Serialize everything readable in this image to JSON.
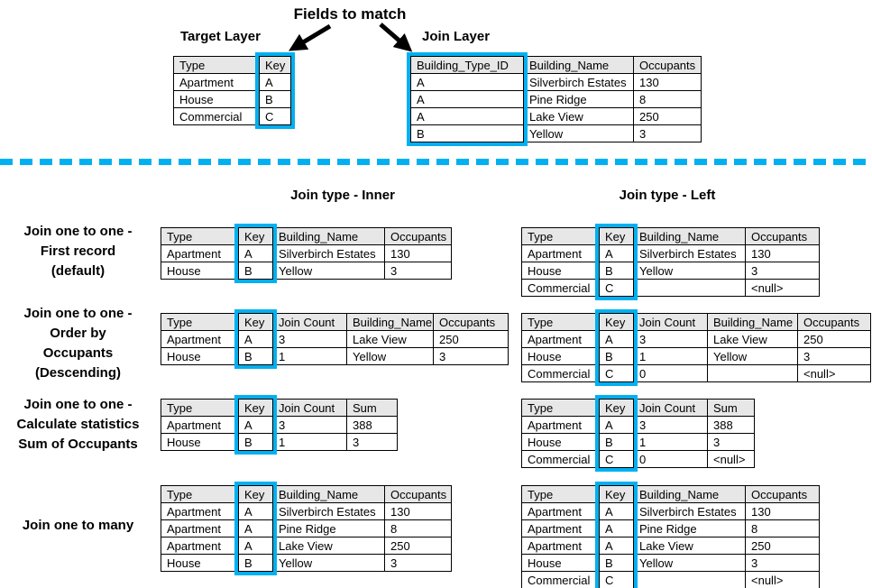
{
  "colors": {
    "highlight": "#00B0F0",
    "header_bg": "#E7E7E7",
    "table_border": "#000000"
  },
  "top": {
    "fields_to_match_label": "Fields to match",
    "target_layer": {
      "title": "Target Layer",
      "table": {
        "headers": [
          "Type",
          "Key"
        ],
        "rows": [
          [
            "Apartment",
            "A"
          ],
          [
            "House",
            "B"
          ],
          [
            "Commercial",
            "C"
          ]
        ],
        "highlight_col": 1
      }
    },
    "join_layer": {
      "title": "Join Layer",
      "table": {
        "headers": [
          "Building_Type_ID",
          "Building_Name",
          "Occupants"
        ],
        "rows": [
          [
            "A",
            "Silverbirch Estates",
            "130"
          ],
          [
            "A",
            "Pine Ridge",
            "8"
          ],
          [
            "A",
            "Lake View",
            "250"
          ],
          [
            "B",
            "Yellow",
            "3"
          ]
        ],
        "highlight_col": 0
      }
    }
  },
  "section_headings": {
    "inner": "Join type - Inner",
    "left": "Join type - Left"
  },
  "rows": [
    {
      "label_lines": [
        "Join one to one -",
        "First record",
        "(default)"
      ],
      "inner": {
        "table": {
          "headers": [
            "Type",
            "Key",
            "Building_Name",
            "Occupants"
          ],
          "rows": [
            [
              "Apartment",
              "A",
              "Silverbirch Estates",
              "130"
            ],
            [
              "House",
              "B",
              "Yellow",
              "3"
            ]
          ],
          "highlight_col": 1
        }
      },
      "left": {
        "table": {
          "headers": [
            "Type",
            "Key",
            "Building_Name",
            "Occupants"
          ],
          "rows": [
            [
              "Apartment",
              "A",
              "Silverbirch Estates",
              "130"
            ],
            [
              "House",
              "B",
              "Yellow",
              "3"
            ],
            [
              "Commercial",
              "C",
              "",
              "<null>"
            ]
          ],
          "highlight_col": 1
        }
      }
    },
    {
      "label_lines": [
        "Join one to one -",
        "Order by",
        "Occupants",
        "(Descending)"
      ],
      "inner": {
        "table": {
          "headers": [
            "Type",
            "Key",
            "Join Count",
            "Building_Name",
            "Occupants"
          ],
          "rows": [
            [
              "Apartment",
              "A",
              "3",
              "Lake View",
              "250"
            ],
            [
              "House",
              "B",
              "1",
              "Yellow",
              "3"
            ]
          ],
          "highlight_col": 1
        }
      },
      "left": {
        "table": {
          "headers": [
            "Type",
            "Key",
            "Join Count",
            "Building_Name",
            "Occupants"
          ],
          "rows": [
            [
              "Apartment",
              "A",
              "3",
              "Lake View",
              "250"
            ],
            [
              "House",
              "B",
              "1",
              "Yellow",
              "3"
            ],
            [
              "Commercial",
              "C",
              "0",
              "",
              "<null>"
            ]
          ],
          "highlight_col": 1
        }
      }
    },
    {
      "label_lines": [
        "Join one to one -",
        "Calculate statistics",
        "Sum of Occupants"
      ],
      "inner": {
        "table": {
          "headers": [
            "Type",
            "Key",
            "Join Count",
            "Sum"
          ],
          "rows": [
            [
              "Apartment",
              "A",
              "3",
              "388"
            ],
            [
              "House",
              "B",
              "1",
              "3"
            ]
          ],
          "highlight_col": 1
        }
      },
      "left": {
        "table": {
          "headers": [
            "Type",
            "Key",
            "Join Count",
            "Sum"
          ],
          "rows": [
            [
              "Apartment",
              "A",
              "3",
              "388"
            ],
            [
              "House",
              "B",
              "1",
              "3"
            ],
            [
              "Commercial",
              "C",
              "0",
              "<null>"
            ]
          ],
          "highlight_col": 1
        }
      }
    },
    {
      "label_lines": [
        "Join one to many"
      ],
      "inner": {
        "table": {
          "headers": [
            "Type",
            "Key",
            "Building_Name",
            "Occupants"
          ],
          "rows": [
            [
              "Apartment",
              "A",
              "Silverbirch Estates",
              "130"
            ],
            [
              "Apartment",
              "A",
              "Pine Ridge",
              "8"
            ],
            [
              "Apartment",
              "A",
              "Lake View",
              "250"
            ],
            [
              "House",
              "B",
              "Yellow",
              "3"
            ]
          ],
          "highlight_col": 1
        }
      },
      "left": {
        "table": {
          "headers": [
            "Type",
            "Key",
            "Building_Name",
            "Occupants"
          ],
          "rows": [
            [
              "Apartment",
              "A",
              "Silverbirch Estates",
              "130"
            ],
            [
              "Apartment",
              "A",
              "Pine Ridge",
              "8"
            ],
            [
              "Apartment",
              "A",
              "Lake View",
              "250"
            ],
            [
              "House",
              "B",
              "Yellow",
              "3"
            ],
            [
              "Commercial",
              "C",
              "",
              "<null>"
            ]
          ],
          "highlight_col": 1
        }
      }
    }
  ]
}
